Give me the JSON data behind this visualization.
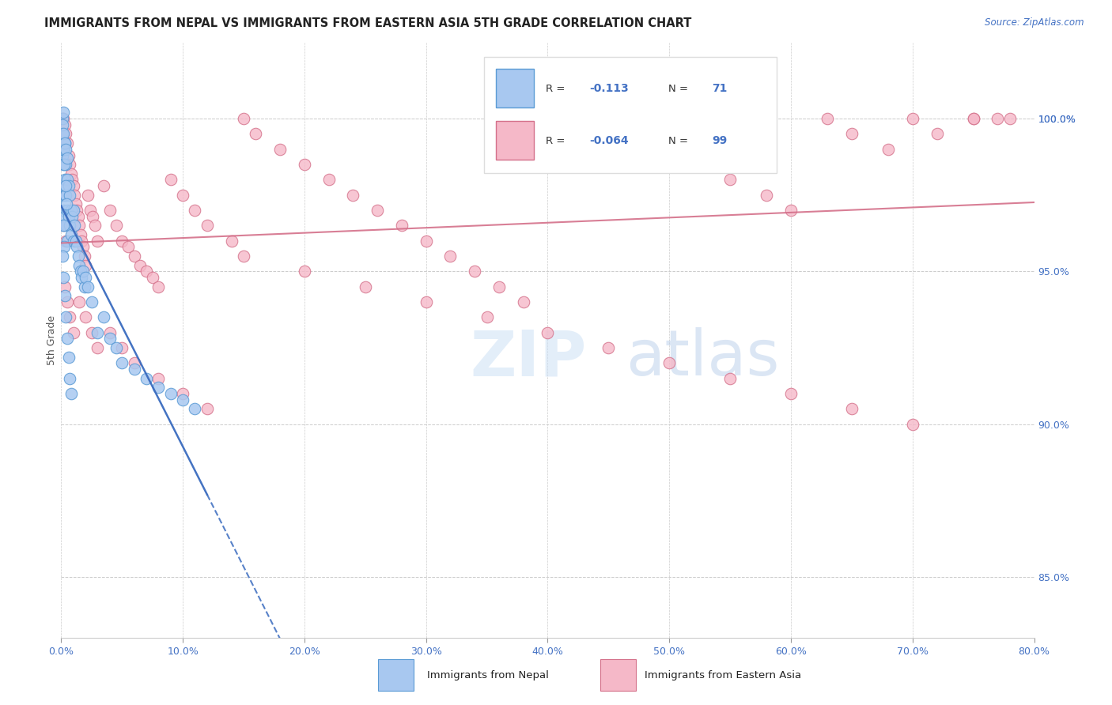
{
  "title": "IMMIGRANTS FROM NEPAL VS IMMIGRANTS FROM EASTERN ASIA 5TH GRADE CORRELATION CHART",
  "source": "Source: ZipAtlas.com",
  "ylabel": "5th Grade",
  "ylabel_right_ticks": [
    85.0,
    90.0,
    95.0,
    100.0
  ],
  "xlim": [
    0.0,
    80.0
  ],
  "ylim": [
    83.0,
    102.5
  ],
  "nepal_R": -0.113,
  "nepal_N": 71,
  "eastern_asia_R": -0.064,
  "eastern_asia_N": 99,
  "nepal_color": "#a8c8f0",
  "nepal_edge_color": "#5b9bd5",
  "eastern_asia_color": "#f5b8c8",
  "eastern_asia_edge_color": "#d4708a",
  "nepal_trend_color": "#3a6bbf",
  "eastern_asia_trend_color": "#d4708a",
  "watermark_zip": "ZIP",
  "watermark_atlas": "atlas",
  "nepal_scatter_x": [
    0.1,
    0.1,
    0.1,
    0.2,
    0.2,
    0.2,
    0.2,
    0.2,
    0.3,
    0.3,
    0.3,
    0.3,
    0.4,
    0.4,
    0.4,
    0.5,
    0.5,
    0.5,
    0.6,
    0.6,
    0.7,
    0.7,
    0.8,
    0.8,
    0.9,
    1.0,
    1.0,
    1.1,
    1.2,
    1.3,
    1.4,
    1.5,
    1.6,
    1.7,
    1.8,
    1.9,
    2.0,
    2.2,
    2.5,
    3.0,
    3.5,
    4.0,
    4.5,
    5.0,
    6.0,
    7.0,
    8.0,
    9.0,
    10.0,
    11.0,
    0.15,
    0.25,
    0.35,
    0.45,
    0.15,
    0.25,
    0.1,
    0.2,
    0.1,
    0.2,
    0.3,
    0.4,
    0.5,
    0.1,
    0.2,
    0.3,
    0.4,
    0.5,
    0.6,
    0.7,
    0.8
  ],
  "nepal_scatter_y": [
    99.5,
    98.8,
    97.5,
    99.0,
    98.5,
    97.8,
    97.0,
    96.5,
    99.2,
    98.0,
    97.5,
    96.8,
    98.5,
    97.5,
    96.5,
    98.0,
    97.0,
    96.0,
    97.8,
    96.8,
    97.5,
    96.5,
    97.0,
    96.2,
    96.8,
    97.0,
    96.0,
    96.5,
    96.0,
    95.8,
    95.5,
    95.2,
    95.0,
    94.8,
    95.0,
    94.5,
    94.8,
    94.5,
    94.0,
    93.0,
    93.5,
    92.8,
    92.5,
    92.0,
    91.8,
    91.5,
    91.2,
    91.0,
    90.8,
    90.5,
    99.0,
    98.5,
    97.8,
    97.2,
    96.5,
    95.8,
    100.0,
    100.2,
    99.8,
    99.5,
    99.2,
    99.0,
    98.7,
    95.5,
    94.8,
    94.2,
    93.5,
    92.8,
    92.2,
    91.5,
    91.0
  ],
  "eastern_asia_scatter_x": [
    0.1,
    0.2,
    0.3,
    0.4,
    0.5,
    0.6,
    0.7,
    0.8,
    0.9,
    1.0,
    1.1,
    1.2,
    1.3,
    1.4,
    1.5,
    1.6,
    1.7,
    1.8,
    1.9,
    2.0,
    2.2,
    2.4,
    2.6,
    2.8,
    3.0,
    3.5,
    4.0,
    4.5,
    5.0,
    5.5,
    6.0,
    6.5,
    7.0,
    7.5,
    8.0,
    9.0,
    10.0,
    11.0,
    12.0,
    14.0,
    15.0,
    16.0,
    18.0,
    20.0,
    22.0,
    24.0,
    26.0,
    28.0,
    30.0,
    32.0,
    34.0,
    36.0,
    38.0,
    40.0,
    42.0,
    44.0,
    46.0,
    48.0,
    50.0,
    52.0,
    55.0,
    58.0,
    60.0,
    63.0,
    65.0,
    68.0,
    70.0,
    72.0,
    75.0,
    77.0,
    0.3,
    0.5,
    0.7,
    1.0,
    1.5,
    2.0,
    2.5,
    3.0,
    4.0,
    5.0,
    6.0,
    8.0,
    10.0,
    12.0,
    15.0,
    20.0,
    25.0,
    30.0,
    35.0,
    40.0,
    45.0,
    50.0,
    55.0,
    60.0,
    65.0,
    70.0,
    75.0,
    78.0,
    0.2,
    0.4
  ],
  "eastern_asia_scatter_y": [
    100.0,
    100.0,
    99.8,
    99.5,
    99.2,
    98.8,
    98.5,
    98.2,
    98.0,
    97.8,
    97.5,
    97.2,
    97.0,
    96.8,
    96.5,
    96.2,
    96.0,
    95.8,
    95.5,
    95.2,
    97.5,
    97.0,
    96.8,
    96.5,
    96.0,
    97.8,
    97.0,
    96.5,
    96.0,
    95.8,
    95.5,
    95.2,
    95.0,
    94.8,
    94.5,
    98.0,
    97.5,
    97.0,
    96.5,
    96.0,
    100.0,
    99.5,
    99.0,
    98.5,
    98.0,
    97.5,
    97.0,
    96.5,
    96.0,
    95.5,
    95.0,
    94.5,
    94.0,
    99.0,
    100.0,
    99.5,
    99.0,
    98.5,
    99.0,
    98.5,
    98.0,
    97.5,
    97.0,
    100.0,
    99.5,
    99.0,
    100.0,
    99.5,
    100.0,
    100.0,
    94.5,
    94.0,
    93.5,
    93.0,
    94.0,
    93.5,
    93.0,
    92.5,
    93.0,
    92.5,
    92.0,
    91.5,
    91.0,
    90.5,
    95.5,
    95.0,
    94.5,
    94.0,
    93.5,
    93.0,
    92.5,
    92.0,
    91.5,
    91.0,
    90.5,
    90.0,
    100.0,
    100.0,
    96.5,
    96.0
  ]
}
